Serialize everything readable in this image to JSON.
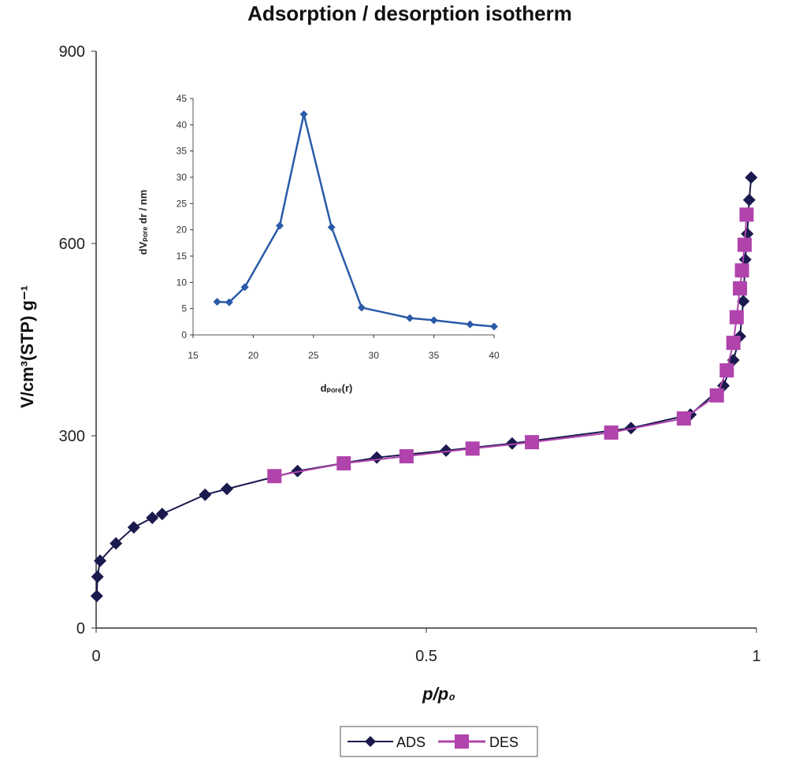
{
  "chart_data": [
    {
      "type": "line",
      "title": "Adsorption / desorption isotherm",
      "xlabel": "p/p₀",
      "ylabel": "V/cm³(STP) g⁻¹",
      "xlim": [
        0,
        1
      ],
      "ylim": [
        0,
        900
      ],
      "xticks": [
        0,
        0.5,
        1
      ],
      "xtick_labels": [
        "0",
        "0.5",
        "1"
      ],
      "yticks": [
        0,
        300,
        600,
        900
      ],
      "ytick_labels": [
        "0",
        "300",
        "600",
        "900"
      ],
      "grid": false,
      "legend_position": "bottom-center",
      "series": [
        {
          "name": "ADS",
          "color": "#1a1a4e",
          "marker": "diamond",
          "x": [
            0.001,
            0.002,
            0.006,
            0.03,
            0.057,
            0.085,
            0.1,
            0.165,
            0.198,
            0.305,
            0.425,
            0.53,
            0.63,
            0.81,
            0.9,
            0.95,
            0.965,
            0.975,
            0.98,
            0.983,
            0.986,
            0.989,
            0.992
          ],
          "y": [
            50,
            80,
            105,
            132,
            157,
            172,
            178,
            208,
            217,
            245,
            266,
            277,
            288,
            312,
            333,
            378,
            418,
            455,
            510,
            575,
            615,
            668,
            703
          ]
        },
        {
          "name": "DES",
          "color": "#b044ac",
          "marker": "square",
          "x": [
            0.27,
            0.375,
            0.47,
            0.57,
            0.66,
            0.78,
            0.89,
            0.94,
            0.955,
            0.965,
            0.97,
            0.975,
            0.978,
            0.982,
            0.985
          ],
          "y": [
            237,
            257,
            268,
            280,
            290,
            305,
            327,
            363,
            402,
            445,
            485,
            530,
            558,
            598,
            645
          ]
        }
      ]
    },
    {
      "type": "line",
      "title": "",
      "xlabel": "dₚₒᵣₑ(r)",
      "ylabel": "dVₚₒᵣₑ dr / nm",
      "xlim": [
        15,
        40
      ],
      "ylim": [
        0,
        45
      ],
      "xticks": [
        15,
        20,
        25,
        30,
        35,
        40
      ],
      "xtick_labels": [
        "15",
        "20",
        "25",
        "30",
        "35",
        "40"
      ],
      "yticks": [
        0,
        5,
        10,
        15,
        20,
        25,
        30,
        35,
        40,
        45
      ],
      "ytick_labels": [
        "0",
        "5",
        "10",
        "15",
        "20",
        "25",
        "30",
        "35",
        "40",
        "45"
      ],
      "grid": false,
      "series": [
        {
          "color": "#2a5aa8",
          "marker": "diamond",
          "x": [
            17,
            18,
            19.3,
            22.2,
            24.2,
            26.5,
            29,
            33,
            35,
            38,
            40
          ],
          "y": [
            6.3,
            6.2,
            9.1,
            20.8,
            42,
            20.5,
            5.2,
            3.2,
            2.8,
            2.0,
            1.6
          ]
        }
      ]
    }
  ]
}
